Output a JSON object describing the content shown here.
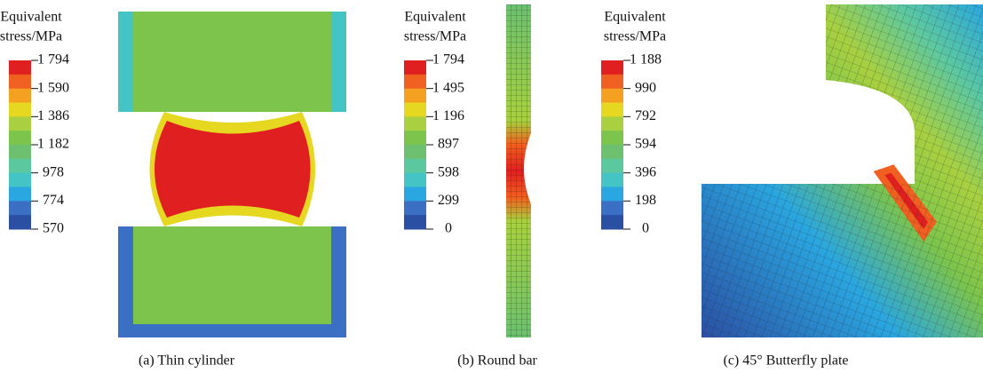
{
  "panels": [
    {
      "legend_title": [
        "Equivalent",
        "stress/MPa"
      ],
      "legend_ticks": [
        "1 794",
        "1 590",
        "1 386",
        "1 182",
        "978",
        "774",
        "570"
      ],
      "caption": "(a) Thin cylinder"
    },
    {
      "legend_title": [
        "Equivalent",
        "stress/MPa"
      ],
      "legend_ticks": [
        "1 794",
        "1 495",
        "1 196",
        "897",
        "598",
        "299",
        "0"
      ],
      "caption": "(b) Round bar"
    },
    {
      "legend_title": [
        "Equivalent",
        "stress/MPa"
      ],
      "legend_ticks": [
        "1 188",
        "990",
        "792",
        "594",
        "396",
        "198",
        "0"
      ],
      "caption": "(c) 45° Butterfly plate"
    }
  ]
}
